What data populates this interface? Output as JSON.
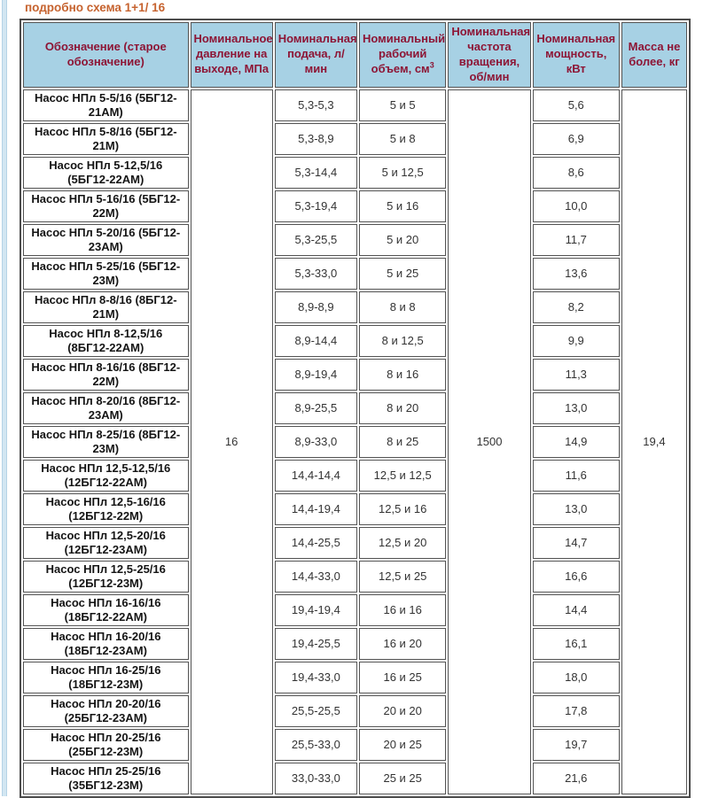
{
  "page": {
    "title": "подробно схема 1+1/ 16"
  },
  "colors": {
    "title_text": "#c6632f",
    "header_background": "#a7d1e4",
    "header_text": "#8d1535",
    "cell_border": "#545454",
    "side_stripe": "#d2e6f2"
  },
  "table": {
    "headers": [
      {
        "text": "Обозначение (старое обозначение)",
        "sup": ""
      },
      {
        "text": "Номинальное давление на выходе, МПа",
        "sup": ""
      },
      {
        "text": "Номинальная подача, л/ мин",
        "sup": ""
      },
      {
        "text": "Номинальный рабочий объем, см",
        "sup": "3"
      },
      {
        "text": "Номинальная частота вращения, об/мин",
        "sup": ""
      },
      {
        "text": "Номинальная мощность, кВт",
        "sup": ""
      },
      {
        "text": "Масса не более, кг",
        "sup": ""
      }
    ],
    "merged": {
      "pressure": "16",
      "speed": "1500",
      "mass": "19,4"
    },
    "rows": [
      {
        "name": "Насос НПл 5-5/16 (5БГ12-21АМ)",
        "supply": "5,3-5,3",
        "volume": "5 и 5",
        "power": "5,6"
      },
      {
        "name": "Насос НПл 5-8/16 (5БГ12-21М)",
        "supply": "5,3-8,9",
        "volume": "5 и 8",
        "power": "6,9"
      },
      {
        "name": "Насос НПл 5-12,5/16 (5БГ12-22АМ)",
        "supply": "5,3-14,4",
        "volume": "5 и 12,5",
        "power": "8,6"
      },
      {
        "name": "Насос НПл 5-16/16 (5БГ12-22М)",
        "supply": "5,3-19,4",
        "volume": "5 и 16",
        "power": "10,0"
      },
      {
        "name": "Насос НПл 5-20/16 (5БГ12-23АМ)",
        "supply": "5,3-25,5",
        "volume": "5 и 20",
        "power": "11,7"
      },
      {
        "name": "Насос НПл 5-25/16 (5БГ12-23М)",
        "supply": "5,3-33,0",
        "volume": "5 и 25",
        "power": "13,6"
      },
      {
        "name": "Насос НПл 8-8/16 (8БГ12-21М)",
        "supply": "8,9-8,9",
        "volume": "8 и 8",
        "power": "8,2"
      },
      {
        "name": "Насос НПл 8-12,5/16 (8БГ12-22АМ)",
        "supply": "8,9-14,4",
        "volume": "8 и 12,5",
        "power": "9,9"
      },
      {
        "name": "Насос НПл 8-16/16 (8БГ12-22М)",
        "supply": "8,9-19,4",
        "volume": "8 и 16",
        "power": "11,3"
      },
      {
        "name": "Насос НПл 8-20/16 (8БГ12-23АМ)",
        "supply": "8,9-25,5",
        "volume": "8 и 20",
        "power": "13,0"
      },
      {
        "name": "Насос НПл 8-25/16 (8БГ12-23М)",
        "supply": "8,9-33,0",
        "volume": "8 и 25",
        "power": "14,9"
      },
      {
        "name": "Насос НПл 12,5-12,5/16 (12БГ12-22АМ)",
        "supply": "14,4-14,4",
        "volume": "12,5 и 12,5",
        "power": "11,6"
      },
      {
        "name": "Насос НПл 12,5-16/16 (12БГ12-22М)",
        "supply": "14,4-19,4",
        "volume": "12,5 и 16",
        "power": "13,0"
      },
      {
        "name": "Насос НПл 12,5-20/16 (12БГ12-23АМ)",
        "supply": "14,4-25,5",
        "volume": "12,5 и 20",
        "power": "14,7"
      },
      {
        "name": "Насос НПл 12,5-25/16 (12БГ12-23М)",
        "supply": "14,4-33,0",
        "volume": "12,5 и 25",
        "power": "16,6"
      },
      {
        "name": "Насос НПл 16-16/16 (18БГ12-22АМ)",
        "supply": "19,4-19,4",
        "volume": "16 и 16",
        "power": "14,4"
      },
      {
        "name": "Насос НПл 16-20/16 (18БГ12-23АМ)",
        "supply": "19,4-25,5",
        "volume": "16 и 20",
        "power": "16,1"
      },
      {
        "name": "Насос НПл 16-25/16 (18БГ12-23М)",
        "supply": "19,4-33,0",
        "volume": "16 и 25",
        "power": "18,0"
      },
      {
        "name": "Насос НПл 20-20/16 (25БГ12-23АМ)",
        "supply": "25,5-25,5",
        "volume": "20 и 20",
        "power": "17,8"
      },
      {
        "name": "Насос НПл 20-25/16 (25БГ12-23М)",
        "supply": "25,5-33,0",
        "volume": "20 и 25",
        "power": "19,7"
      },
      {
        "name": "Насос НПл 25-25/16 (35БГ12-23М)",
        "supply": "33,0-33,0",
        "volume": "25 и 25",
        "power": "21,6"
      }
    ]
  }
}
